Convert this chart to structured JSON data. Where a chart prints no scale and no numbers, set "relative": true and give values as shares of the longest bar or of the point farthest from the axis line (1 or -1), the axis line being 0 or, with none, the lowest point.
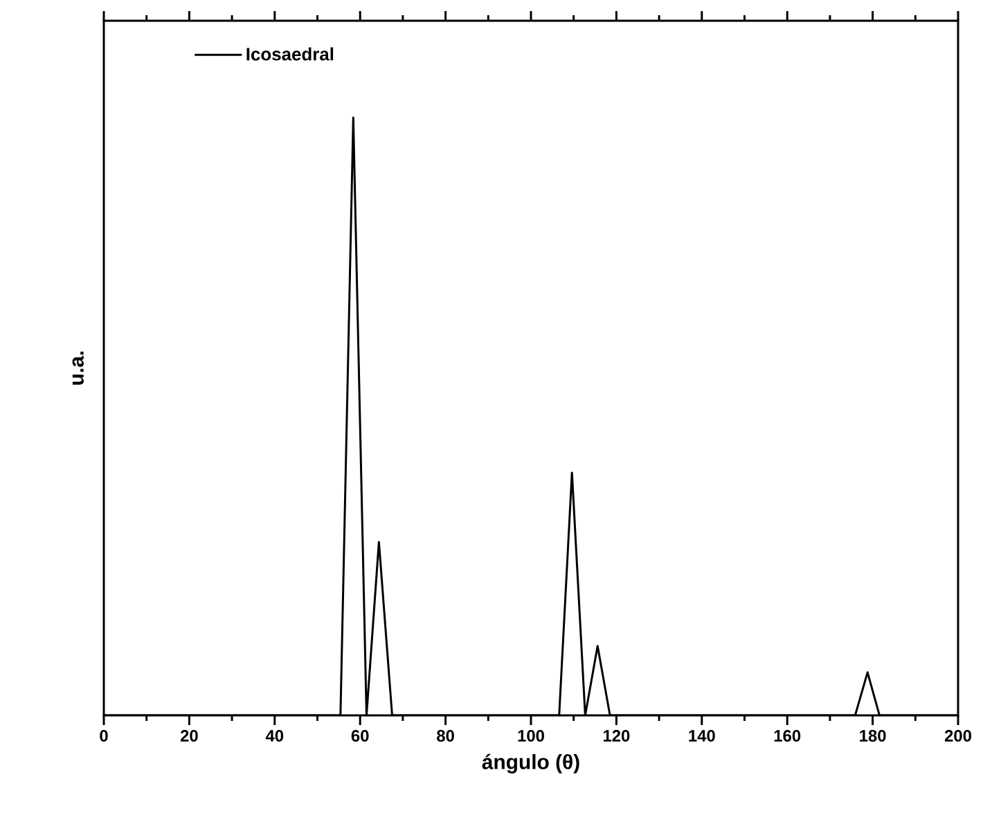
{
  "chart_data": {
    "type": "line",
    "xlabel": "ángulo (θ)",
    "ylabel": "u.a.",
    "relative": true,
    "xlim": [
      0,
      200
    ],
    "xticks": [
      0,
      20,
      40,
      60,
      80,
      100,
      120,
      140,
      160,
      180,
      200
    ],
    "legend": "top left",
    "marker": "none",
    "line_style": "solid",
    "grid": false,
    "series": [
      {
        "name": "Icosaedral",
        "color": "#000000",
        "x": [
          0,
          55.4,
          58.4,
          61.5,
          64.4,
          67.5,
          106.6,
          109.6,
          112.7,
          115.6,
          118.5,
          175.9,
          178.8,
          181.6,
          200
        ],
        "values": [
          0,
          0,
          1,
          0,
          0.29,
          0,
          0,
          0.406,
          0,
          0.116,
          0,
          0,
          0.072,
          0,
          0
        ]
      }
    ]
  }
}
